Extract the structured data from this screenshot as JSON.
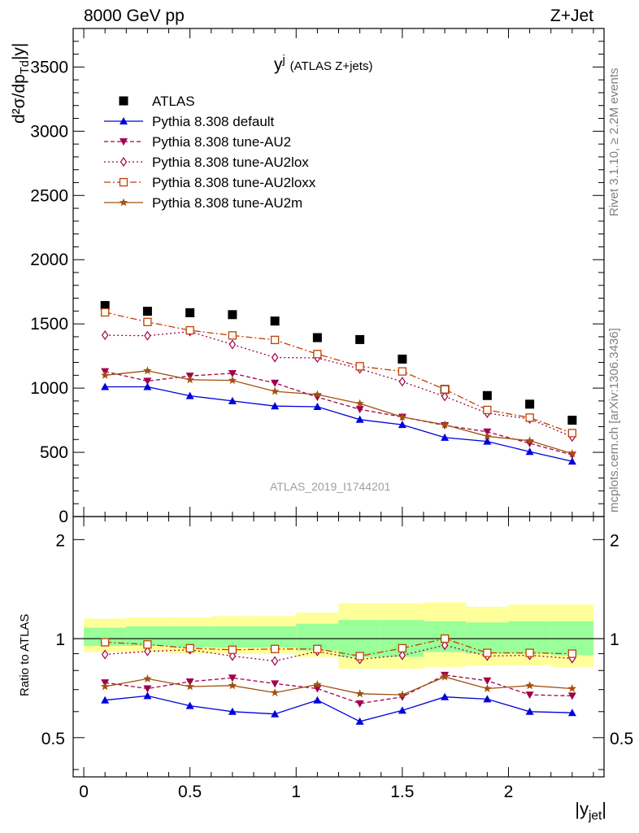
{
  "header": {
    "energy_label": "8000 GeV pp",
    "process_label": "Z+Jet"
  },
  "side_labels": {
    "rivet": "Rivet 3.1.10, ≥ 2.2M events",
    "mcplots": "mcplots.cern.ch [arXiv:1306.3436]"
  },
  "watermark": "ATLAS_2019_I1744201",
  "chart_data": [
    {
      "type": "scatter",
      "title_main": "y",
      "title_sup": "j",
      "title_suffix": "(ATLAS Z+jets)",
      "ylabel_main": "d²σ/dp",
      "ylabel_sub": "Td",
      "ylabel_suffix": "|y|",
      "xlim": [
        -0.05,
        2.45
      ],
      "ylim": [
        0,
        3800
      ],
      "yticks": [
        0,
        500,
        1000,
        1500,
        2000,
        2500,
        3000,
        3500
      ],
      "ytick_labels": [
        "0",
        "500",
        "1000",
        "1500",
        "2000",
        "2500",
        "3000",
        "3500"
      ],
      "legend_position": "top-left",
      "x": [
        0.1,
        0.3,
        0.5,
        0.7,
        0.9,
        1.1,
        1.3,
        1.5,
        1.7,
        1.9,
        2.1,
        2.3
      ],
      "series": [
        {
          "name": "ATLAS",
          "color": "#000000",
          "marker": "square",
          "line": "none",
          "values": [
            1643,
            1598,
            1587,
            1572,
            1522,
            1393,
            1378,
            1226,
            990,
            942,
            875,
            750
          ]
        },
        {
          "name": "Pythia 8.308 default",
          "color": "#0000dd",
          "marker": "triangle-up",
          "line": "solid",
          "values": [
            1010,
            1010,
            940,
            900,
            860,
            855,
            755,
            715,
            615,
            585,
            505,
            430
          ]
        },
        {
          "name": "Pythia 8.308 tune-AU2",
          "color": "#a0004a",
          "marker": "triangle-down",
          "line": "dashed",
          "values": [
            1130,
            1055,
            1095,
            1115,
            1040,
            930,
            835,
            775,
            710,
            660,
            570,
            480
          ]
        },
        {
          "name": "Pythia 8.308 tune-AU2lox",
          "color": "#a0004a",
          "marker": "diamond-open",
          "line": "dotted",
          "values": [
            1412,
            1408,
            1440,
            1340,
            1238,
            1235,
            1150,
            1050,
            935,
            805,
            760,
            620
          ]
        },
        {
          "name": "Pythia 8.308 tune-AU2loxx",
          "color": "#c04000",
          "marker": "square-open",
          "line": "dashdot",
          "values": [
            1590,
            1515,
            1450,
            1410,
            1375,
            1265,
            1170,
            1130,
            990,
            830,
            770,
            650
          ]
        },
        {
          "name": "Pythia 8.308 tune-AU2m",
          "color": "#a05010",
          "marker": "star",
          "line": "solid",
          "values": [
            1100,
            1135,
            1065,
            1060,
            975,
            950,
            880,
            775,
            715,
            625,
            590,
            490
          ]
        }
      ]
    },
    {
      "type": "scatter",
      "ylabel": "Ratio to ATLAS",
      "xlabel_main": "|y",
      "xlabel_sub": "jet",
      "xlabel_suffix": "|",
      "xlim": [
        -0.05,
        2.45
      ],
      "ylim": [
        0.38,
        2.35
      ],
      "ylog": true,
      "xticks": [
        0,
        0.5,
        1,
        1.5,
        2
      ],
      "xtick_labels": [
        "0",
        "0.5",
        "1",
        "1.5",
        "2"
      ],
      "yticks": [
        0.5,
        1,
        2
      ],
      "ytick_labels": [
        "0.5",
        "1",
        "2"
      ],
      "bin_edges": [
        0.0,
        0.2,
        0.4,
        0.6,
        0.8,
        1.0,
        1.2,
        1.4,
        1.6,
        1.8,
        2.0,
        2.2,
        2.4
      ],
      "band_outer": {
        "color": "#ffff99",
        "lo": [
          0.91,
          0.91,
          0.9,
          0.9,
          0.9,
          0.88,
          0.81,
          0.81,
          0.82,
          0.83,
          0.83,
          0.82
        ],
        "hi": [
          1.15,
          1.16,
          1.16,
          1.17,
          1.17,
          1.2,
          1.28,
          1.28,
          1.29,
          1.25,
          1.27,
          1.27
        ]
      },
      "band_inner": {
        "color": "#99ff99",
        "lo": [
          0.95,
          0.95,
          0.94,
          0.94,
          0.94,
          0.92,
          0.88,
          0.88,
          0.91,
          0.9,
          0.9,
          0.89
        ]
      },
      "band_inner_hi": [
        1.08,
        1.09,
        1.09,
        1.09,
        1.09,
        1.11,
        1.14,
        1.14,
        1.13,
        1.12,
        1.13,
        1.13
      ],
      "x": [
        0.1,
        0.3,
        0.5,
        0.7,
        0.9,
        1.1,
        1.3,
        1.5,
        1.7,
        1.9,
        2.1,
        2.3
      ],
      "series": [
        {
          "name": "Pythia 8.308 default",
          "color": "#0000dd",
          "marker": "triangle-up",
          "line": "solid",
          "values": [
            0.65,
            0.67,
            0.625,
            0.6,
            0.59,
            0.65,
            0.56,
            0.605,
            0.665,
            0.655,
            0.6,
            0.595
          ]
        },
        {
          "name": "Pythia 8.308 tune-AU2",
          "color": "#a0004a",
          "marker": "triangle-down",
          "line": "dashed",
          "values": [
            0.735,
            0.705,
            0.74,
            0.76,
            0.73,
            0.705,
            0.635,
            0.665,
            0.775,
            0.745,
            0.675,
            0.67
          ]
        },
        {
          "name": "Pythia 8.308 tune-AU2lox",
          "color": "#a0004a",
          "marker": "diamond-open",
          "line": "dotted",
          "values": [
            0.895,
            0.915,
            0.925,
            0.885,
            0.855,
            0.915,
            0.865,
            0.89,
            0.955,
            0.885,
            0.89,
            0.87
          ]
        },
        {
          "name": "Pythia 8.308 tune-AU2loxx",
          "color": "#c04000",
          "marker": "square-open",
          "line": "dashdot",
          "values": [
            0.975,
            0.96,
            0.935,
            0.925,
            0.93,
            0.93,
            0.885,
            0.935,
            1.0,
            0.905,
            0.905,
            0.9
          ]
        },
        {
          "name": "Pythia 8.308 tune-AU2m",
          "color": "#a05010",
          "marker": "star",
          "line": "solid",
          "values": [
            0.715,
            0.755,
            0.715,
            0.72,
            0.685,
            0.725,
            0.68,
            0.675,
            0.765,
            0.705,
            0.72,
            0.705
          ]
        }
      ]
    }
  ]
}
